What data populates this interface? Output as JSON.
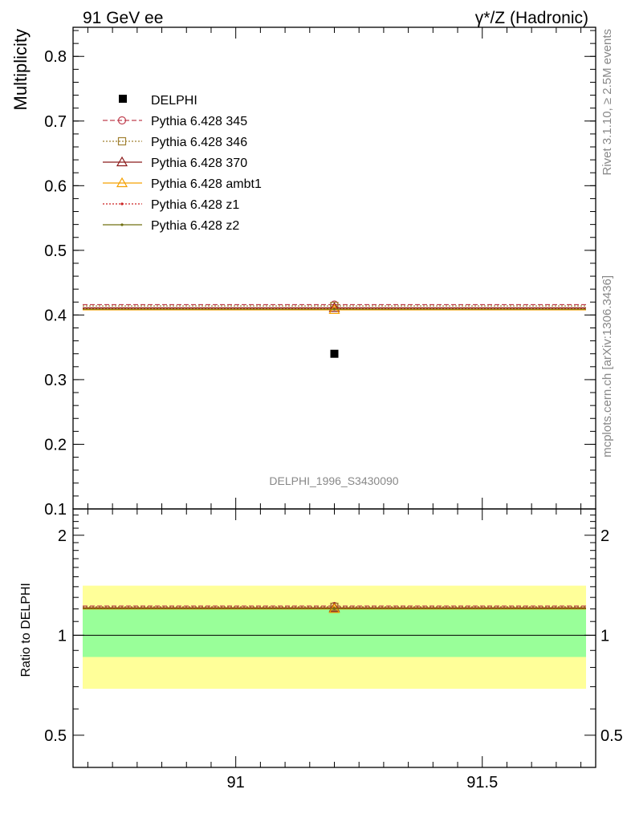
{
  "header": {
    "left": "91 GeV ee",
    "right": "γ*/Z (Hadronic)"
  },
  "side_labels": {
    "rivet": "Rivet 3.1.10, ≥ 2.5M events",
    "mcplots": "mcplots.cern.ch [arXiv:1306.3436]"
  },
  "chart_data": [
    {
      "type": "scatter",
      "ylabel": "Multiplicity",
      "xlim": [
        90.67,
        91.73
      ],
      "ylim": [
        0.1,
        0.845
      ],
      "yticks": [
        "0.1",
        "0.2",
        "0.3",
        "0.4",
        "0.5",
        "0.6",
        "0.7",
        "0.8"
      ],
      "ytick_values": [
        0.1,
        0.2,
        0.3,
        0.4,
        0.5,
        0.6,
        0.7,
        0.8
      ],
      "annotation": "DELPHI_1996_S3430090",
      "data_point": {
        "name": "DELPHI",
        "x": 91.2,
        "y": 0.34
      },
      "series": [
        {
          "name": "Pythia 6.428 345",
          "x": 91.2,
          "y": 0.416,
          "color": "#c04050",
          "style": "dashed",
          "marker": "circle"
        },
        {
          "name": "Pythia 6.428 346",
          "x": 91.2,
          "y": 0.414,
          "color": "#a08030",
          "style": "dotted",
          "marker": "square"
        },
        {
          "name": "Pythia 6.428 370",
          "x": 91.2,
          "y": 0.411,
          "color": "#8b1a1a",
          "style": "solid",
          "marker": "triangle"
        },
        {
          "name": "Pythia 6.428 ambt1",
          "x": 91.2,
          "y": 0.408,
          "color": "#f5a000",
          "style": "solid",
          "marker": "triangle"
        },
        {
          "name": "Pythia 6.428 z1",
          "x": 91.2,
          "y": 0.41,
          "color": "#cc2020",
          "style": "dotted",
          "marker": "dot"
        },
        {
          "name": "Pythia 6.428 z2",
          "x": 91.2,
          "y": 0.409,
          "color": "#707010",
          "style": "solid",
          "marker": "dot"
        }
      ]
    },
    {
      "type": "line",
      "ylabel": "Ratio to DELPHI",
      "xlabel": "",
      "log_y": true,
      "ylim": [
        0.4,
        2.4
      ],
      "yticks": [
        "0.5",
        "1",
        "2"
      ],
      "ytick_values": [
        0.5,
        1,
        2
      ],
      "xticks": [
        "91",
        "91.5"
      ],
      "xtick_values": [
        91,
        91.5
      ],
      "band_inner": [
        0.86,
        1.2
      ],
      "band_outer": [
        0.69,
        1.41
      ],
      "reference": 1,
      "ratios": [
        1.224,
        1.218,
        1.209,
        1.2,
        1.206,
        1.203
      ]
    }
  ]
}
